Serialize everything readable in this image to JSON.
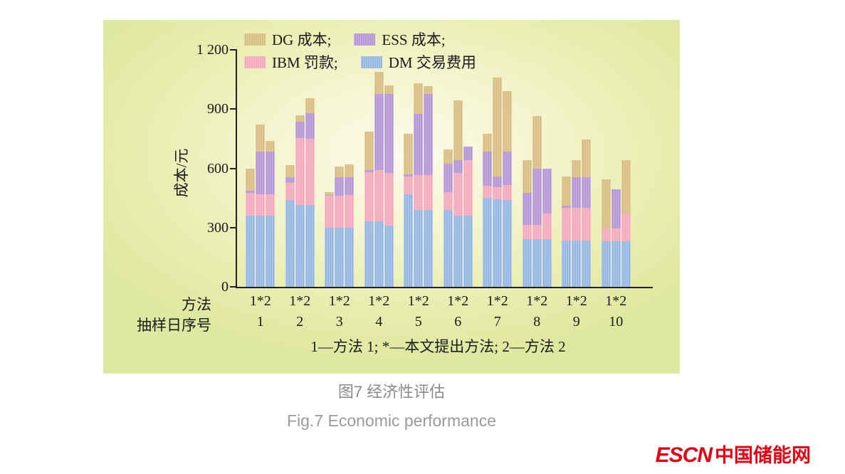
{
  "page": {
    "caption_zh": "图7  经济性评估",
    "caption_en": "Fig.7  Economic performance",
    "logo": {
      "escn": "ESCN",
      "cn": "中国储能网",
      "color": "#e60012"
    }
  },
  "chart_data": {
    "type": "bar",
    "stacked": true,
    "title": "",
    "ylabel": "成本/元",
    "ylim": [
      0,
      1200
    ],
    "yticks": [
      0,
      300,
      600,
      900,
      1200
    ],
    "ytick_labels": [
      "0",
      "300",
      "600",
      "900",
      "1 200"
    ],
    "grid": false,
    "legend_position": "top-inside",
    "legend": [
      {
        "label": "DG 成本;",
        "color": "#d9bc80"
      },
      {
        "label": "ESS 成本;",
        "color": "#b495d6"
      },
      {
        "label": "IBM 罚款;",
        "color": "#f6a8bb"
      },
      {
        "label": "DM 交易费用",
        "color": "#93b7e2"
      }
    ],
    "series_order": [
      "DM",
      "IBM",
      "ESS",
      "DG"
    ],
    "series_colors": {
      "DM": "#93b7e2",
      "IBM": "#f6a8bb",
      "ESS": "#b495d6",
      "DG": "#d9bc80"
    },
    "x_axis": {
      "method_row_label": "方法",
      "day_row_label": "抽样日序号",
      "group_label": "1*2",
      "method_labels": [
        "1",
        "*",
        "2"
      ],
      "days": [
        "1",
        "2",
        "3",
        "4",
        "5",
        "6",
        "7",
        "8",
        "9",
        "10"
      ]
    },
    "footnote": "1—方法 1;  *—本文提出方法;  2—方法 2",
    "groups": [
      {
        "day": "1",
        "bars": [
          {
            "method": "1",
            "values": {
              "DM": 360,
              "IBM": 115,
              "ESS": 10,
              "DG": 115
            }
          },
          {
            "method": "*",
            "values": {
              "DM": 360,
              "IBM": 110,
              "ESS": 215,
              "DG": 135
            }
          },
          {
            "method": "2",
            "values": {
              "DM": 360,
              "IBM": 110,
              "ESS": 215,
              "DG": 55
            }
          }
        ]
      },
      {
        "day": "2",
        "bars": [
          {
            "method": "1",
            "values": {
              "DM": 440,
              "IBM": 85,
              "ESS": 30,
              "DG": 60
            }
          },
          {
            "method": "*",
            "values": {
              "DM": 415,
              "IBM": 340,
              "ESS": 80,
              "DG": 35
            }
          },
          {
            "method": "2",
            "values": {
              "DM": 415,
              "IBM": 335,
              "ESS": 130,
              "DG": 75
            }
          }
        ]
      },
      {
        "day": "3",
        "bars": [
          {
            "method": "1",
            "values": {
              "DM": 300,
              "IBM": 160,
              "ESS": 5,
              "DG": 15
            }
          },
          {
            "method": "*",
            "values": {
              "DM": 300,
              "IBM": 160,
              "ESS": 95,
              "DG": 55
            }
          },
          {
            "method": "2",
            "values": {
              "DM": 300,
              "IBM": 165,
              "ESS": 90,
              "DG": 65
            }
          }
        ]
      },
      {
        "day": "4",
        "bars": [
          {
            "method": "1",
            "values": {
              "DM": 330,
              "IBM": 250,
              "ESS": 10,
              "DG": 195
            }
          },
          {
            "method": "*",
            "values": {
              "DM": 330,
              "IBM": 260,
              "ESS": 385,
              "DG": 115
            }
          },
          {
            "method": "2",
            "values": {
              "DM": 310,
              "IBM": 265,
              "ESS": 400,
              "DG": 45
            }
          }
        ]
      },
      {
        "day": "5",
        "bars": [
          {
            "method": "1",
            "values": {
              "DM": 470,
              "IBM": 90,
              "ESS": 10,
              "DG": 205
            }
          },
          {
            "method": "*",
            "values": {
              "DM": 390,
              "IBM": 175,
              "ESS": 310,
              "DG": 155
            }
          },
          {
            "method": "2",
            "values": {
              "DM": 390,
              "IBM": 175,
              "ESS": 410,
              "DG": 40
            }
          }
        ]
      },
      {
        "day": "6",
        "bars": [
          {
            "method": "1",
            "values": {
              "DM": 390,
              "IBM": 90,
              "ESS": 145,
              "DG": 70
            }
          },
          {
            "method": "*",
            "values": {
              "DM": 360,
              "IBM": 215,
              "ESS": 65,
              "DG": 305
            }
          },
          {
            "method": "2",
            "values": {
              "DM": 360,
              "IBM": 280,
              "ESS": 70,
              "DG": 0
            }
          }
        ]
      },
      {
        "day": "7",
        "bars": [
          {
            "method": "1",
            "values": {
              "DM": 450,
              "IBM": 60,
              "ESS": 175,
              "DG": 90
            }
          },
          {
            "method": "*",
            "values": {
              "DM": 445,
              "IBM": 60,
              "ESS": 55,
              "DG": 500
            }
          },
          {
            "method": "2",
            "values": {
              "DM": 440,
              "IBM": 75,
              "ESS": 170,
              "DG": 305
            }
          }
        ]
      },
      {
        "day": "8",
        "bars": [
          {
            "method": "1",
            "values": {
              "DM": 240,
              "IBM": 75,
              "ESS": 160,
              "DG": 165
            }
          },
          {
            "method": "*",
            "values": {
              "DM": 240,
              "IBM": 75,
              "ESS": 285,
              "DG": 265
            }
          },
          {
            "method": "2",
            "values": {
              "DM": 240,
              "IBM": 130,
              "ESS": 230,
              "DG": 0
            }
          }
        ]
      },
      {
        "day": "9",
        "bars": [
          {
            "method": "1",
            "values": {
              "DM": 235,
              "IBM": 165,
              "ESS": 10,
              "DG": 150
            }
          },
          {
            "method": "*",
            "values": {
              "DM": 235,
              "IBM": 165,
              "ESS": 155,
              "DG": 85
            }
          },
          {
            "method": "2",
            "values": {
              "DM": 235,
              "IBM": 165,
              "ESS": 155,
              "DG": 190
            }
          }
        ]
      },
      {
        "day": "10",
        "bars": [
          {
            "method": "1",
            "values": {
              "DM": 230,
              "IBM": 65,
              "ESS": 0,
              "DG": 250
            }
          },
          {
            "method": "*",
            "values": {
              "DM": 230,
              "IBM": 65,
              "ESS": 200,
              "DG": 0
            }
          },
          {
            "method": "2",
            "values": {
              "DM": 230,
              "IBM": 140,
              "ESS": 0,
              "DG": 270
            }
          }
        ]
      }
    ]
  }
}
